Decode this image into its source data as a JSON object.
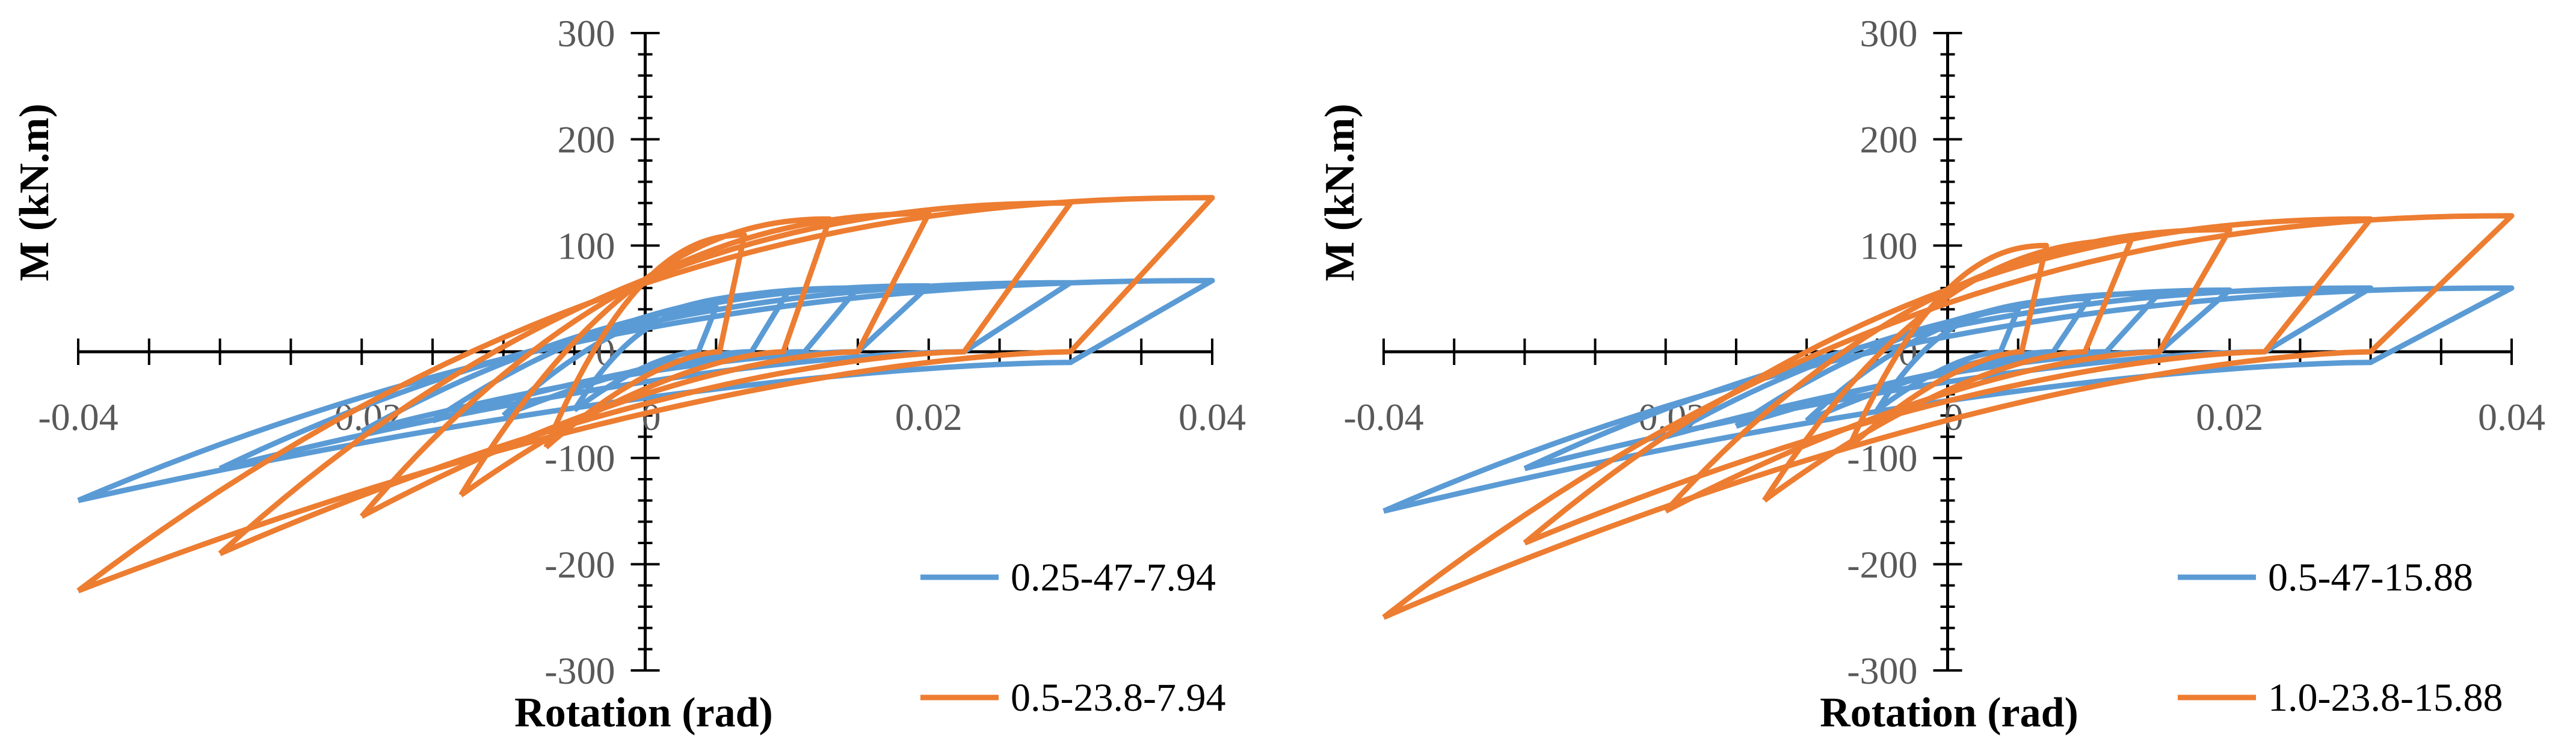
{
  "chart_data": [
    {
      "type": "line",
      "xlabel": "Rotation (rad)",
      "ylabel": "M (kN.m)",
      "xlim": [
        -0.04,
        0.04
      ],
      "ylim": [
        -300,
        300
      ],
      "xticks": [
        "-0.04",
        "-0.02",
        "0",
        "0.02",
        "0.04"
      ],
      "yticks": [
        "300",
        "200",
        "100",
        "0",
        "-100",
        "-200",
        "-300"
      ],
      "legend_position": "bottom-right",
      "series": [
        {
          "name": "0.25-47-7.94",
          "color": "#5B9BD5",
          "loops": [
            {
              "amp": 0.005,
              "pos": 42,
              "neg": -55,
              "offset": 0
            },
            {
              "amp": 0.01,
              "pos": 55,
              "neg": -60,
              "offset": 0
            },
            {
              "amp": 0.015,
              "pos": 60,
              "neg": -65,
              "offset": 0
            },
            {
              "amp": 0.02,
              "pos": 62,
              "neg": -75,
              "offset": 0
            },
            {
              "amp": 0.03,
              "pos": 65,
              "neg": -110,
              "offset": 0
            },
            {
              "amp": 0.04,
              "pos": 67,
              "neg": -140,
              "offset": -10
            }
          ]
        },
        {
          "name": "0.5-23.8-7.94",
          "color": "#ED7D31",
          "loops": [
            {
              "amp": 0.007,
              "pos": 110,
              "neg": -90,
              "offset": 0
            },
            {
              "amp": 0.013,
              "pos": 125,
              "neg": -135,
              "offset": 0
            },
            {
              "amp": 0.02,
              "pos": 130,
              "neg": -155,
              "offset": 0
            },
            {
              "amp": 0.03,
              "pos": 140,
              "neg": -190,
              "offset": 0
            },
            {
              "amp": 0.04,
              "pos": 145,
              "neg": -225,
              "offset": 0
            }
          ]
        }
      ]
    },
    {
      "type": "line",
      "xlabel": "Rotation (rad)",
      "ylabel": "M (kN.m)",
      "xlim": [
        -0.04,
        0.04
      ],
      "ylim": [
        -300,
        300
      ],
      "xticks": [
        "-0.04",
        "-0.02",
        "0",
        "0.02",
        "0.04"
      ],
      "yticks": [
        "300",
        "200",
        "100",
        "0",
        "-100",
        "-200",
        "-300"
      ],
      "legend_position": "bottom-right",
      "series": [
        {
          "name": "0.5-47-15.88",
          "color": "#5B9BD5",
          "loops": [
            {
              "amp": 0.005,
              "pos": 40,
              "neg": -55,
              "offset": 0
            },
            {
              "amp": 0.01,
              "pos": 50,
              "neg": -65,
              "offset": 0
            },
            {
              "amp": 0.015,
              "pos": 55,
              "neg": -70,
              "offset": 0
            },
            {
              "amp": 0.02,
              "pos": 58,
              "neg": -80,
              "offset": 0
            },
            {
              "amp": 0.03,
              "pos": 60,
              "neg": -110,
              "offset": 0
            },
            {
              "amp": 0.04,
              "pos": 60,
              "neg": -150,
              "offset": -10
            }
          ]
        },
        {
          "name": "1.0-23.8-15.88",
          "color": "#ED7D31",
          "loops": [
            {
              "amp": 0.007,
              "pos": 100,
              "neg": -90,
              "offset": 0
            },
            {
              "amp": 0.013,
              "pos": 105,
              "neg": -140,
              "offset": 0
            },
            {
              "amp": 0.02,
              "pos": 115,
              "neg": -150,
              "offset": 0
            },
            {
              "amp": 0.03,
              "pos": 125,
              "neg": -180,
              "offset": 0
            },
            {
              "amp": 0.04,
              "pos": 128,
              "neg": -250,
              "offset": 0
            }
          ]
        }
      ]
    }
  ]
}
